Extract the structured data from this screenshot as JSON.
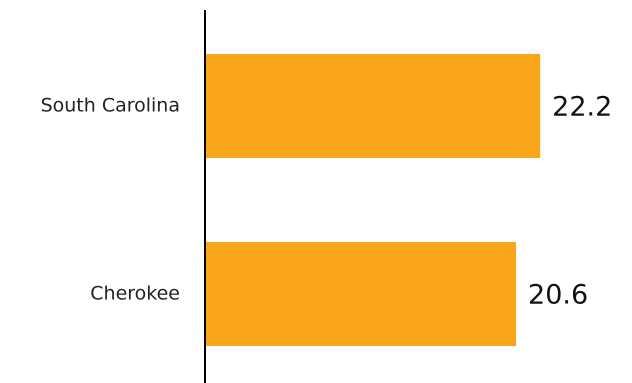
{
  "chart_data": {
    "type": "bar",
    "orientation": "horizontal",
    "categories": [
      "South Carolina",
      "Cherokee"
    ],
    "values": [
      22.2,
      20.6
    ],
    "value_labels": [
      "22.2",
      "20.6"
    ],
    "title": "",
    "xlabel": "",
    "ylabel": "",
    "xlim": [
      0,
      25.5
    ],
    "grid": false,
    "legend": "none",
    "bar_color": "#FAA61A",
    "axis_color": "#000000"
  }
}
